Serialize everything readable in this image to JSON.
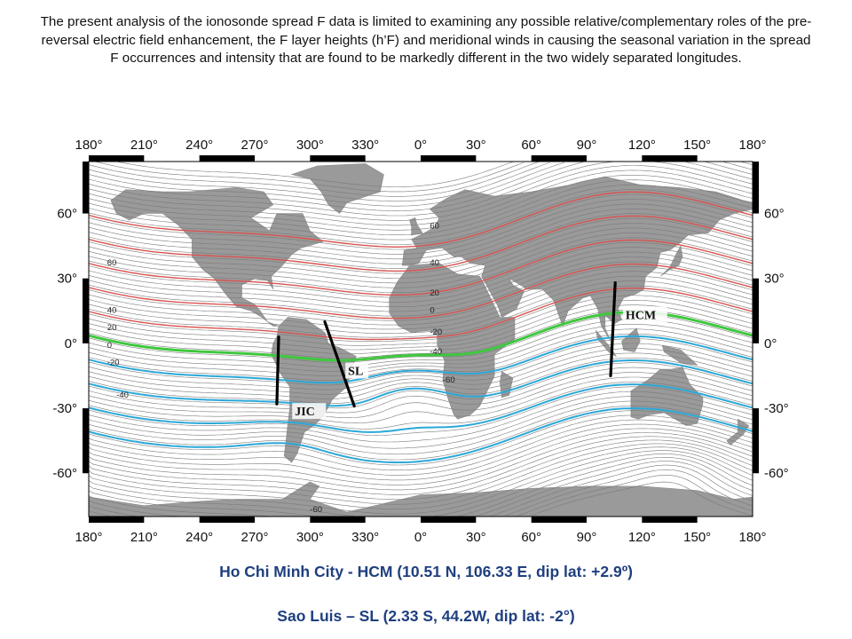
{
  "intro": {
    "text": "The present analysis of the ionosonde spread F data is limited to examining any possible relative/complementary roles of the pre-reversal electric field enhancement, the F layer heights (h’F) and meridional winds in causing the seasonal variation in the spread F occurrences and intensity that are found to be markedly different in the two widely separated longitudes."
  },
  "map": {
    "lon_ticks": [
      "180°",
      "210°",
      "240°",
      "270°",
      "300°",
      "330°",
      "0°",
      "30°",
      "60°",
      "90°",
      "120°",
      "150°",
      "180°"
    ],
    "lat_ticks_left": [
      "60°",
      "30°",
      "0°",
      "-30°",
      "-60°"
    ],
    "lat_ticks_right": [
      "60°",
      "30°",
      "0°",
      "-30°",
      "-60°"
    ],
    "colors": {
      "land": "#9a9a9a",
      "ocean": "#ffffff",
      "positive_contours": "#d9534f",
      "negative_contours": "#2aa8d8",
      "zero_contour": "#3ec83e",
      "minor_contours": "#7a7a7a"
    },
    "contour_labels": [
      {
        "text": "60",
        "lon": -170,
        "lat": 36
      },
      {
        "text": "40",
        "lon": -170,
        "lat": 14
      },
      {
        "text": "20",
        "lon": -170,
        "lat": 6
      },
      {
        "text": "0",
        "lon": -170,
        "lat": -2
      },
      {
        "text": "-20",
        "lon": -170,
        "lat": -10
      },
      {
        "text": "-40",
        "lon": -165,
        "lat": -25
      },
      {
        "text": "60",
        "lon": 5,
        "lat": 53
      },
      {
        "text": "40",
        "lon": 5,
        "lat": 36
      },
      {
        "text": "20",
        "lon": 5,
        "lat": 22
      },
      {
        "text": "0",
        "lon": 5,
        "lat": 14
      },
      {
        "text": "-20",
        "lon": 5,
        "lat": 4
      },
      {
        "text": "-40",
        "lon": 5,
        "lat": -5
      },
      {
        "text": "-60",
        "lon": 12,
        "lat": -18
      },
      {
        "text": "-60",
        "lon": -60,
        "lat": -78
      }
    ],
    "stations": [
      {
        "id": "jic",
        "label": "JIC",
        "lon": -76.9,
        "lat": -12
      },
      {
        "id": "sl",
        "label": "SL",
        "lon": -44.2,
        "lat": -2.3
      },
      {
        "id": "hcm",
        "label": "HCM",
        "lon": 106.3,
        "lat": 10.5
      }
    ]
  },
  "stations_text": {
    "hcm": "Ho Chi Minh City - HCM (10.51 N, 106.33 E, dip lat: +2.9º)",
    "sl": "Sao Luis – SL (2.33 S, 44.2W, dip lat: -2°)"
  }
}
